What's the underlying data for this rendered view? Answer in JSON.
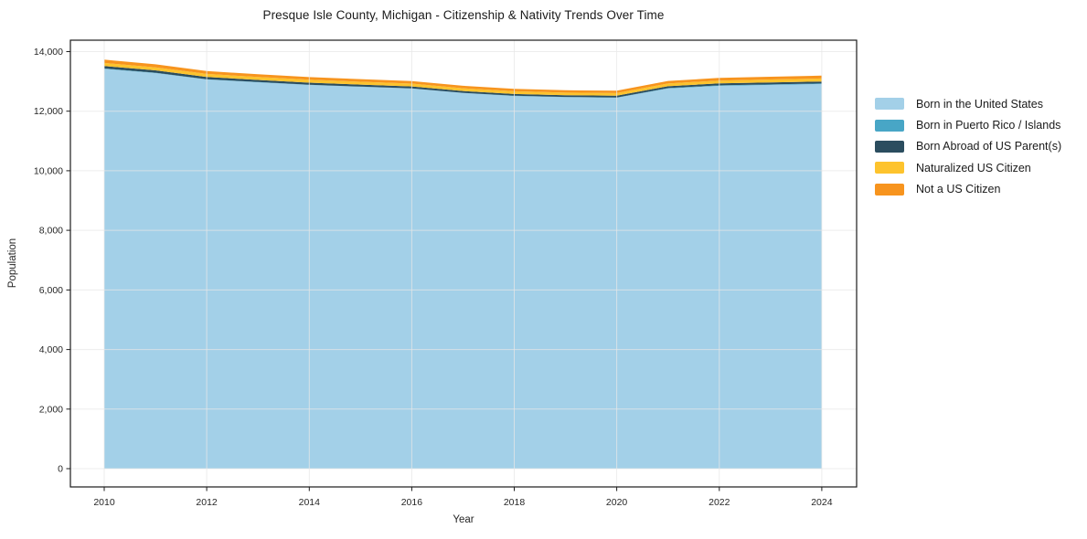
{
  "chart_data": {
    "type": "area",
    "stacked": true,
    "title": "Presque Isle County, Michigan - Citizenship & Nativity Trends Over Time",
    "xlabel": "Year",
    "ylabel": "Population",
    "x": [
      2010,
      2011,
      2012,
      2013,
      2014,
      2015,
      2016,
      2017,
      2018,
      2019,
      2020,
      2021,
      2022,
      2023,
      2024
    ],
    "series": [
      {
        "name": "Born in the United States",
        "color": "#a3d0e8",
        "values": [
          13420,
          13280,
          13065,
          12970,
          12880,
          12820,
          12760,
          12610,
          12510,
          12470,
          12450,
          12760,
          12850,
          12880,
          12910
        ]
      },
      {
        "name": "Born in Puerto Rico / Islands",
        "color": "#48a6c6",
        "values": [
          15,
          12,
          10,
          8,
          6,
          5,
          5,
          6,
          8,
          8,
          10,
          15,
          18,
          20,
          22
        ]
      },
      {
        "name": "Born Abroad of US Parent(s)",
        "color": "#2b4d5f",
        "values": [
          80,
          78,
          75,
          72,
          70,
          68,
          65,
          62,
          60,
          58,
          58,
          62,
          64,
          65,
          66
        ]
      },
      {
        "name": "Naturalized US Citizen",
        "color": "#fdc32d",
        "values": [
          105,
          102,
          100,
          98,
          98,
          95,
          95,
          92,
          90,
          88,
          88,
          92,
          95,
          98,
          100
        ]
      },
      {
        "name": "Not a US Citizen",
        "color": "#f7941e",
        "values": [
          110,
          100,
          95,
          92,
          90,
          88,
          85,
          82,
          80,
          78,
          80,
          85,
          88,
          92,
          95
        ]
      }
    ],
    "x_tick_values": [
      2010,
      2012,
      2014,
      2016,
      2018,
      2020,
      2022,
      2024
    ],
    "x_tick_labels": [
      "2010",
      "2012",
      "2014",
      "2016",
      "2018",
      "2020",
      "2022",
      "2024"
    ],
    "y_tick_values": [
      0,
      2000,
      4000,
      6000,
      8000,
      10000,
      12000,
      14000
    ],
    "y_tick_labels": [
      "0",
      "2,000",
      "4,000",
      "6,000",
      "8,000",
      "10,000",
      "12,000",
      "14,000"
    ],
    "xlim": [
      2009.34,
      2024.68
    ],
    "ylim": [
      -613,
      14383
    ],
    "grid": true,
    "legend_position": "right"
  }
}
